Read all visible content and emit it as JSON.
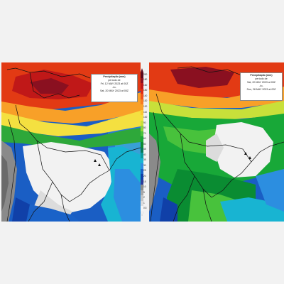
{
  "legend_left": {
    "title": "Precipitação (mm)",
    "subtitle": "período de",
    "from": "Fri, 12 MAY 2023 at 00Z",
    "sep": "-to-",
    "to": "Sat, 20 MAY 2023 at 00Z"
  },
  "legend_right": {
    "title": "Precipitação (mm)",
    "subtitle": "período de",
    "from": "Sat, 20 MAY 2023 at 00Z",
    "sep": "-to-",
    "to": "Sun, 28 MAY 2023 at 00Z"
  },
  "colorbar": {
    "labels": [
      "200",
      "180",
      "160",
      "150",
      "140",
      "130",
      "120",
      "110",
      "100",
      "90",
      "80",
      "70",
      "60",
      "50",
      "45",
      "40",
      "35",
      "30",
      "25",
      "20",
      "15",
      "10",
      "5",
      "2",
      "1",
      "0.5"
    ],
    "colors": [
      "#5a0a1e",
      "#8a1020",
      "#c01818",
      "#e02a12",
      "#f0501a",
      "#f87a20",
      "#fca028",
      "#fcc832",
      "#f4e040",
      "#c8e03a",
      "#8cd23a",
      "#48c23c",
      "#18a838",
      "#0a8c32",
      "#067a5a",
      "#0a9c9c",
      "#18b4d2",
      "#2c8ee0",
      "#1a62c8",
      "#1040a8",
      "#2c3c9a",
      "#8a8a8a",
      "#a8a8a8",
      "#c4c4c4",
      "#dcdcdc",
      "#f4f4f4"
    ]
  }
}
